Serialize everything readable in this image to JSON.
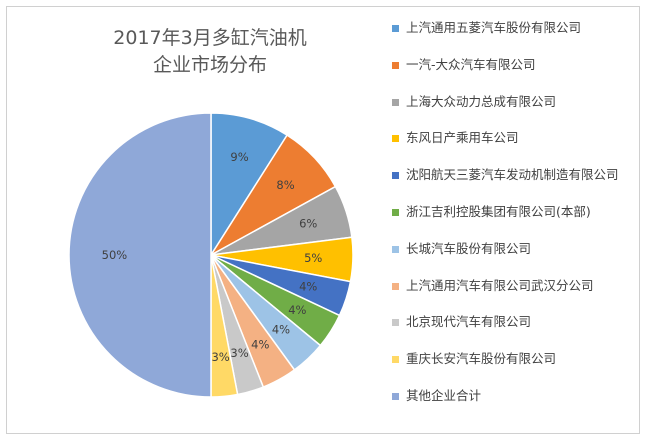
{
  "chart_data": {
    "type": "pie",
    "title": "2017年3月多缸汽油机\n企业市场分布",
    "categories": [
      "上汽通用五菱汽车股份有限公司",
      "一汽-大众汽车有限公司",
      "上海大众动力总成有限公司",
      "东风日产乘用车公司",
      "沈阳航天三菱汽车发动机制造有限公司",
      "浙江吉利控股集团有限公司(本部)",
      "长城汽车股份有限公司",
      "上汽通用汽车有限公司武汉分公司",
      "北京现代汽车有限公司",
      "重庆长安汽车股份有限公司",
      "其他企业合计"
    ],
    "values": [
      9,
      8,
      6,
      5,
      4,
      4,
      4,
      4,
      3,
      3,
      50
    ],
    "labels": [
      "9%",
      "8%",
      "6%",
      "5%",
      "4%",
      "4%",
      "4%",
      "4%",
      "3%",
      "3%",
      "50%"
    ],
    "colors": [
      "#5b9bd5",
      "#ed7d31",
      "#a5a5a5",
      "#ffc000",
      "#4472c4",
      "#70ad47",
      "#9dc3e6",
      "#f4b183",
      "#c9c9c9",
      "#ffd966",
      "#8fa8d8"
    ],
    "legend_position": "right"
  }
}
